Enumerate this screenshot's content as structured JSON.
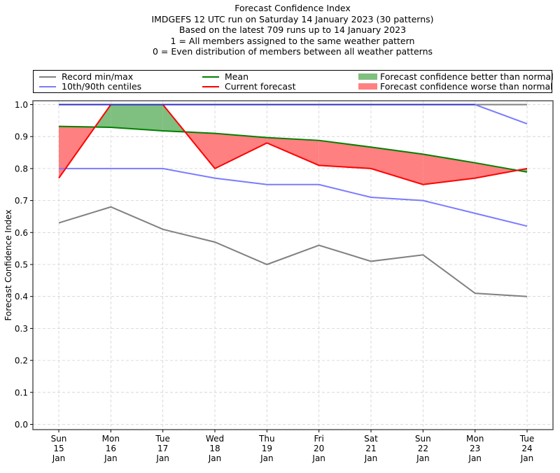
{
  "chart_data": {
    "type": "line",
    "title": "Forecast Confidence Index",
    "subtitle_lines": [
      "IMDGEFS 12 UTC run on Saturday 14 January 2023 (30 patterns)",
      "Based on the latest 709 runs up to 14 January 2023",
      "1 = All members assigned to the same weather pattern",
      "0 = Even distribution of members between all weather patterns"
    ],
    "xlabel": "",
    "ylabel": "Forecast Confidence Index",
    "ylim": [
      0.0,
      1.0
    ],
    "yticks": [
      "0.0",
      "0.1",
      "0.2",
      "0.3",
      "0.4",
      "0.5",
      "0.6",
      "0.7",
      "0.8",
      "0.9",
      "1.0"
    ],
    "grid": true,
    "legend_position": "top",
    "categories": [
      [
        "Sun",
        "15",
        "Jan"
      ],
      [
        "Mon",
        "16",
        "Jan"
      ],
      [
        "Tue",
        "17",
        "Jan"
      ],
      [
        "Wed",
        "18",
        "Jan"
      ],
      [
        "Thu",
        "19",
        "Jan"
      ],
      [
        "Fri",
        "20",
        "Jan"
      ],
      [
        "Sat",
        "21",
        "Jan"
      ],
      [
        "Sun",
        "22",
        "Jan"
      ],
      [
        "Mon",
        "23",
        "Jan"
      ],
      [
        "Tue",
        "24",
        "Jan"
      ]
    ],
    "series": [
      {
        "name": "Record max",
        "legend": "Record min/max",
        "color": "#808080",
        "values": [
          1.0,
          1.0,
          1.0,
          1.0,
          1.0,
          1.0,
          1.0,
          1.0,
          1.0,
          1.0
        ]
      },
      {
        "name": "Record min",
        "legend": "Record min/max",
        "color": "#808080",
        "values": [
          0.63,
          0.68,
          0.61,
          0.57,
          0.5,
          0.56,
          0.51,
          0.53,
          0.41,
          0.4
        ]
      },
      {
        "name": "90th centile",
        "legend": "10th/90th centiles",
        "color": "#7b7bff",
        "values": [
          1.0,
          1.0,
          1.0,
          1.0,
          1.0,
          1.0,
          1.0,
          1.0,
          1.0,
          0.94
        ]
      },
      {
        "name": "10th centile",
        "legend": "10th/90th centiles",
        "color": "#7b7bff",
        "values": [
          0.8,
          0.8,
          0.8,
          0.77,
          0.75,
          0.75,
          0.71,
          0.7,
          0.66,
          0.62
        ]
      },
      {
        "name": "Mean",
        "legend": "Mean",
        "color": "#008000",
        "values": [
          0.932,
          0.929,
          0.918,
          0.91,
          0.897,
          0.888,
          0.867,
          0.845,
          0.818,
          0.789
        ]
      },
      {
        "name": "Current forecast",
        "legend": "Current forecast",
        "color": "#ff0000",
        "values": [
          0.77,
          1.0,
          1.0,
          0.8,
          0.88,
          0.81,
          0.8,
          0.75,
          0.77,
          0.8
        ]
      }
    ],
    "fills": {
      "better": {
        "label": "Forecast confidence better than normal",
        "color": "#7fbf7f"
      },
      "worse": {
        "label": "Forecast confidence worse than normal",
        "color": "#ff8080"
      }
    }
  },
  "legend": {
    "record": "Record min/max",
    "centiles": "10th/90th centiles",
    "mean": "Mean",
    "current": "Current forecast",
    "better": "Forecast confidence better than normal",
    "worse": "Forecast confidence worse than normal"
  }
}
